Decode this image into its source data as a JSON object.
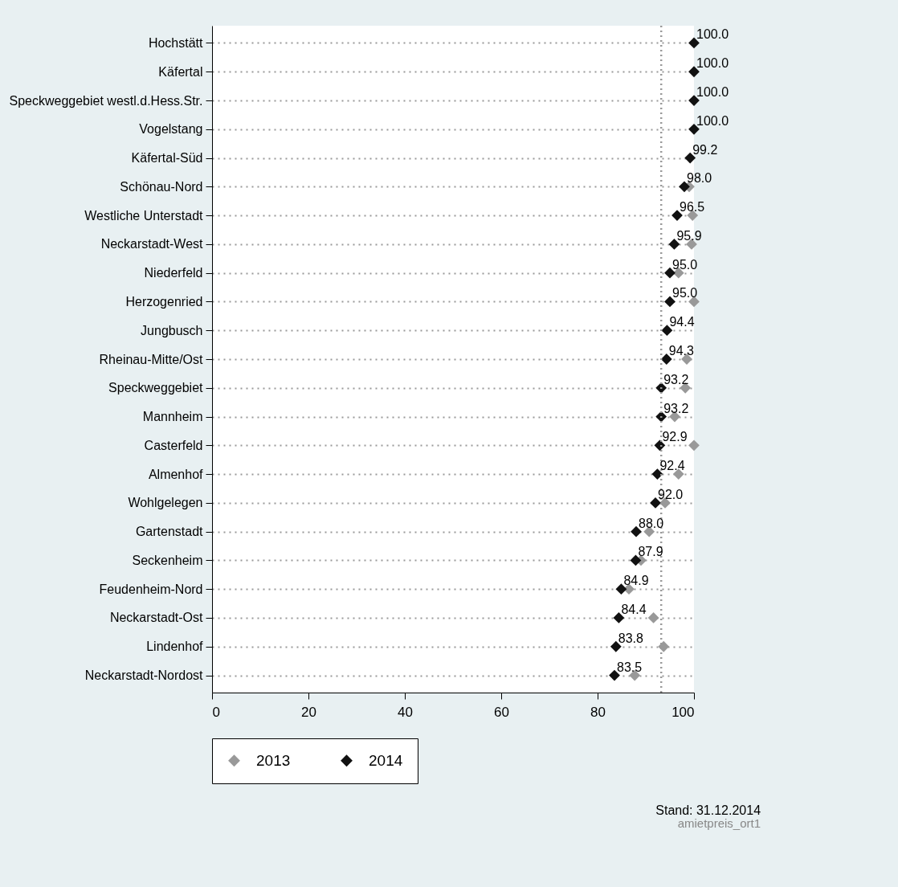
{
  "chart_data": {
    "type": "scatter",
    "orientation": "horizontal",
    "categories": [
      "Hochstätt",
      "Käfertal",
      "Speckweggebiet westl.d.Hess.Str.",
      "Vogelstang",
      "Käfertal-Süd",
      "Schönau-Nord",
      "Westliche Unterstadt",
      "Neckarstadt-West",
      "Niederfeld",
      "Herzogenried",
      "Jungbusch",
      "Rheinau-Mitte/Ost",
      "Speckweggebiet",
      "Mannheim",
      "Casterfeld",
      "Almenhof",
      "Wohlgelegen",
      "Gartenstadt",
      "Seckenheim",
      "Feudenheim-Nord",
      "Neckarstadt-Ost",
      "Lindenhof",
      "Neckarstadt-Nordost"
    ],
    "series": [
      {
        "name": "2013",
        "color": "#999999",
        "values": [
          null,
          null,
          null,
          null,
          null,
          99.0,
          99.7,
          99.5,
          96.8,
          100.0,
          null,
          98.5,
          98.2,
          96.0,
          100.0,
          96.8,
          94.0,
          90.7,
          89.0,
          86.5,
          91.6,
          93.7,
          87.7
        ]
      },
      {
        "name": "2014",
        "color": "#111111",
        "values": [
          100.0,
          100.0,
          100.0,
          100.0,
          99.2,
          98.0,
          96.5,
          95.9,
          95.0,
          95.0,
          94.4,
          94.3,
          93.2,
          93.2,
          92.9,
          92.4,
          92.0,
          88.0,
          87.9,
          84.9,
          84.4,
          83.8,
          83.5
        ],
        "value_labels": [
          "100.0",
          "100.0",
          "100.0",
          "100.0",
          "99.2",
          "98.0",
          "96.5",
          "95.9",
          "95.0",
          "95.0",
          "94.4",
          "94.3",
          "93.2",
          "93.2",
          "92.9",
          "92.4",
          "92.0",
          "88.0",
          "87.9",
          "84.9",
          "84.4",
          "83.8",
          "83.5"
        ]
      }
    ],
    "xlim": [
      0,
      100
    ],
    "xticks": [
      0,
      20,
      40,
      60,
      80,
      100
    ],
    "ref_lines": [
      {
        "axis": "x",
        "value": 93.2,
        "color": "#999999",
        "line_style": "dotted"
      }
    ],
    "grid": "y",
    "legend": "bottom",
    "marker": "diamond",
    "annotations": [
      "Stand: 31.12.2014",
      "amietpreis_ort1"
    ]
  }
}
